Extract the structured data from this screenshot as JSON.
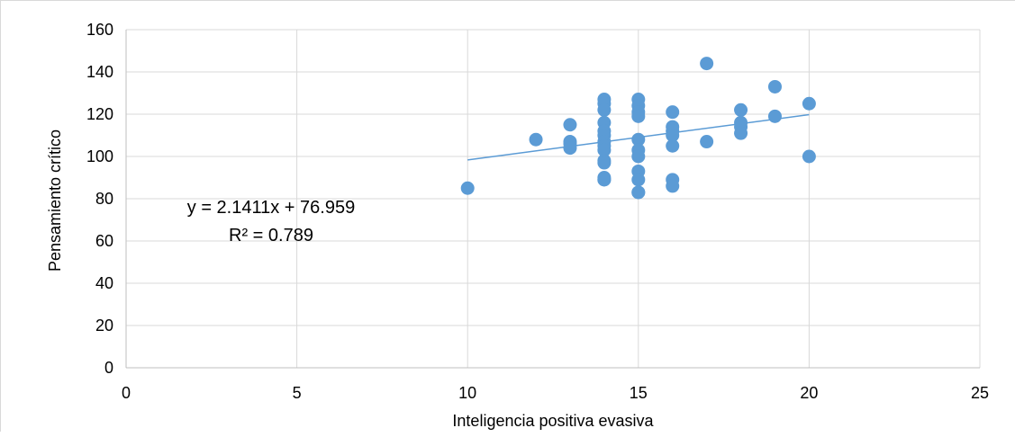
{
  "chart_data": {
    "type": "scatter",
    "title": "",
    "xlabel": "Inteligencia positiva evasiva",
    "ylabel": "Pensamiento crítico",
    "xlim": [
      0,
      25
    ],
    "ylim": [
      0,
      160
    ],
    "xticks": [
      0,
      5,
      10,
      15,
      20,
      25
    ],
    "yticks": [
      0,
      20,
      40,
      60,
      80,
      100,
      120,
      140,
      160
    ],
    "grid": true,
    "legend": "none",
    "marker_color": "#5b9bd5",
    "trendline_color": "#5b9bd5",
    "trendline": {
      "slope": 2.1411,
      "intercept": 76.959,
      "x_range": [
        10,
        20
      ],
      "equation": "y = 2.1411x + 76.959",
      "r2": "R² = 0.789"
    },
    "series": [
      {
        "x": [
          10,
          12,
          13,
          13,
          13,
          13,
          14,
          14,
          14,
          14,
          14,
          14,
          14,
          14,
          14,
          14,
          14,
          14,
          14,
          14,
          15,
          15,
          15,
          15,
          15,
          15,
          15,
          15,
          15,
          15,
          15,
          16,
          16,
          16,
          16,
          16,
          16,
          16,
          17,
          17,
          18,
          18,
          18,
          18,
          19,
          19,
          20,
          20
        ],
        "y": [
          85,
          108,
          115,
          107,
          106,
          104,
          127,
          125,
          122,
          116,
          112,
          110,
          107,
          105,
          103,
          98,
          97,
          90,
          89,
          89,
          127,
          124,
          121,
          119,
          108,
          103,
          100,
          93,
          89,
          83,
          83,
          121,
          114,
          112,
          110,
          105,
          89,
          86,
          144,
          107,
          122,
          116,
          114,
          111,
          133,
          119,
          125,
          100
        ]
      }
    ]
  }
}
